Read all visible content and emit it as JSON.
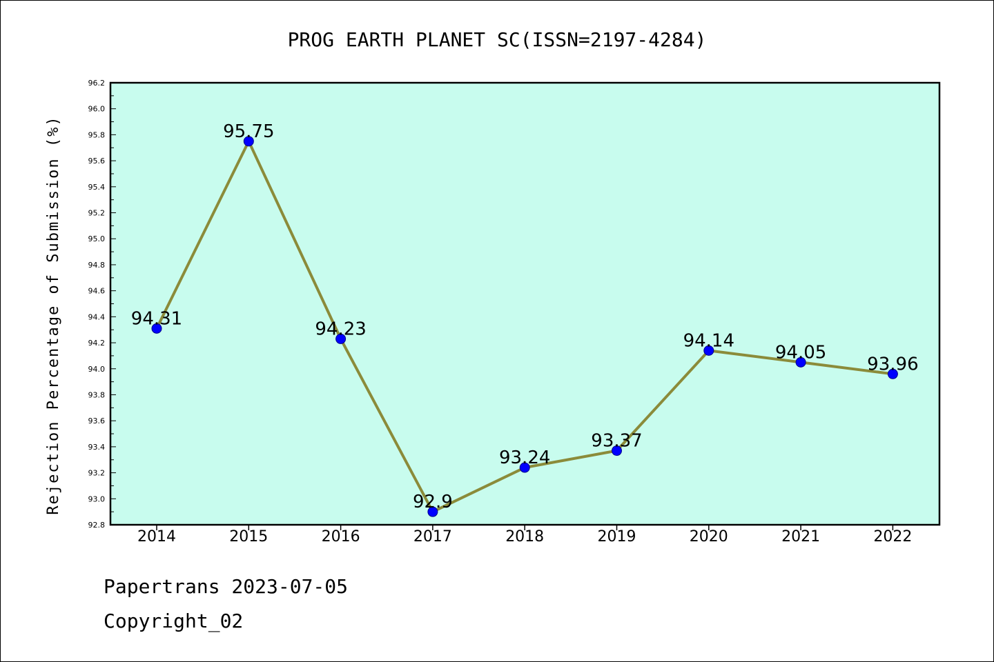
{
  "chart_data": {
    "type": "line",
    "title": "PROG EARTH PLANET SC(ISSN=2197-4284)",
    "xlabel": "",
    "ylabel": "Rejection Percentage of Submission (%)",
    "categories": [
      "2014",
      "2015",
      "2016",
      "2017",
      "2018",
      "2019",
      "2020",
      "2021",
      "2022"
    ],
    "series": [
      {
        "values": [
          94.31,
          95.75,
          94.23,
          92.9,
          93.24,
          93.37,
          94.14,
          94.05,
          93.96
        ],
        "labels": [
          "94.31",
          "95.75",
          "94.23",
          "92.9",
          "93.24",
          "93.37",
          "94.14",
          "94.05",
          "93.96"
        ]
      }
    ],
    "ylim": [
      92.8,
      96.2
    ],
    "yticks": [
      "92.8",
      "93.0",
      "93.2",
      "93.4",
      "93.6",
      "93.8",
      "94.0",
      "94.2",
      "94.4",
      "94.6",
      "94.8",
      "95.0",
      "95.2",
      "95.4",
      "95.6",
      "95.8",
      "96.0",
      "96.2"
    ],
    "grid": false,
    "colors": {
      "plot_background": "#c8fcee",
      "line": "#8b8b3a",
      "marker": "#0000ff"
    }
  },
  "footer": {
    "line1": "Papertrans 2023-07-05",
    "line2": "Copyright_02"
  }
}
